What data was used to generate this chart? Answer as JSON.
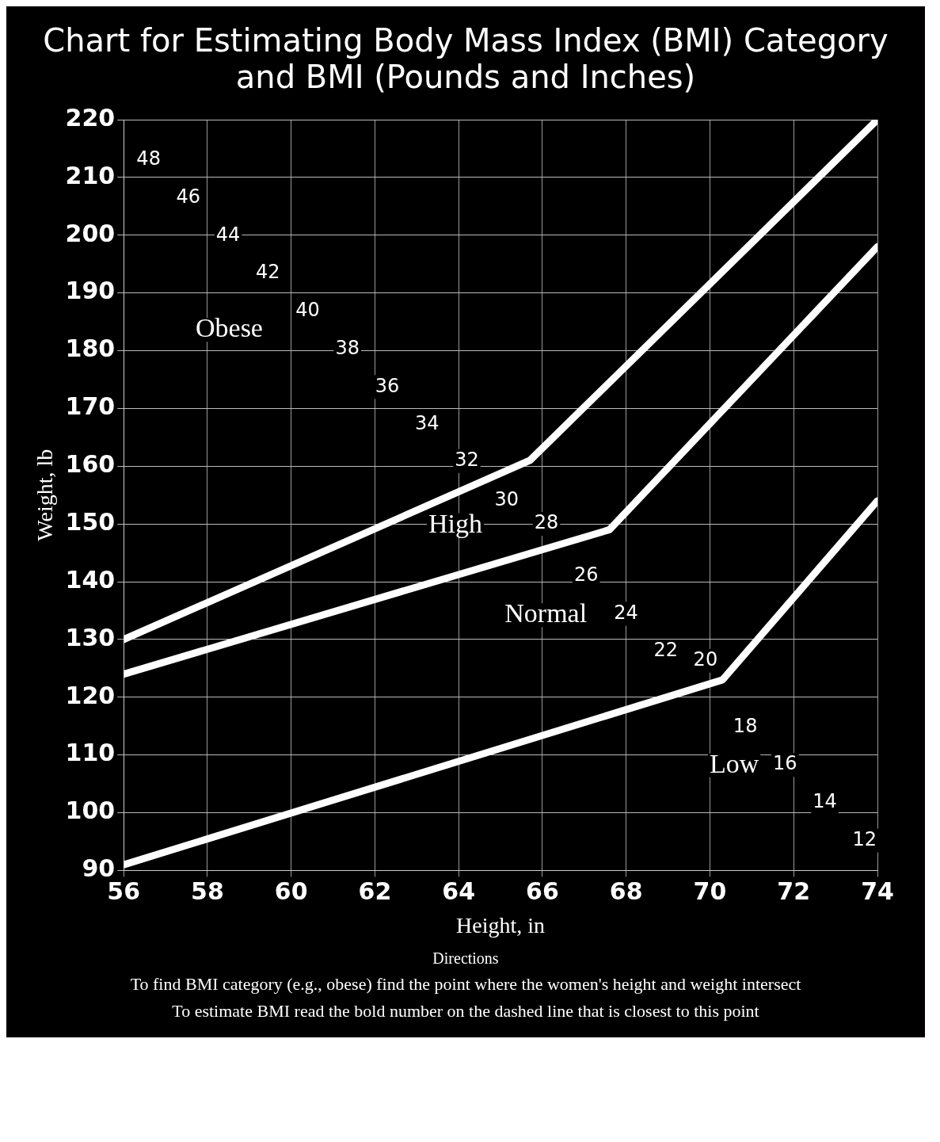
{
  "chart_data": {
    "type": "line",
    "title": "Chart for Estimating Body Mass Index (BMI) Category and BMI (Pounds and Inches)",
    "xlabel": "Height, in",
    "ylabel": "Weight, lb",
    "xlim": [
      56,
      74
    ],
    "xticks": [
      56,
      58,
      60,
      62,
      64,
      66,
      68,
      70,
      72,
      74
    ],
    "ylim": [
      90,
      220
    ],
    "yticks": [
      90,
      100,
      110,
      120,
      130,
      140,
      150,
      160,
      170,
      180,
      190,
      200,
      210,
      220
    ],
    "grid": true,
    "marker": "none",
    "line_style": "solid",
    "legend": false,
    "series": [
      {
        "color": "#ffffff",
        "x": [
          56,
          65.7,
          74
        ],
        "values": [
          130,
          161,
          220
        ]
      },
      {
        "color": "#ffffff",
        "x": [
          56,
          67.6,
          74
        ],
        "values": [
          124,
          149,
          198
        ]
      },
      {
        "color": "#ffffff",
        "x": [
          56,
          70.3,
          74
        ],
        "values": [
          91,
          123,
          154
        ]
      }
    ],
    "annotations": [
      "Obese",
      "High",
      "Normal",
      "Low",
      "48",
      "46",
      "44",
      "42",
      "40",
      "38",
      "36",
      "34",
      "32",
      "30",
      "28",
      "26",
      "24",
      "22",
      "20",
      "18",
      "16",
      "14",
      "12",
      "Directions",
      "To find BMI category (e.g., obese) find the point where the women's height and weight intersect",
      "To estimate BMI read the bold number on the dashed line that is closest to this point"
    ]
  }
}
